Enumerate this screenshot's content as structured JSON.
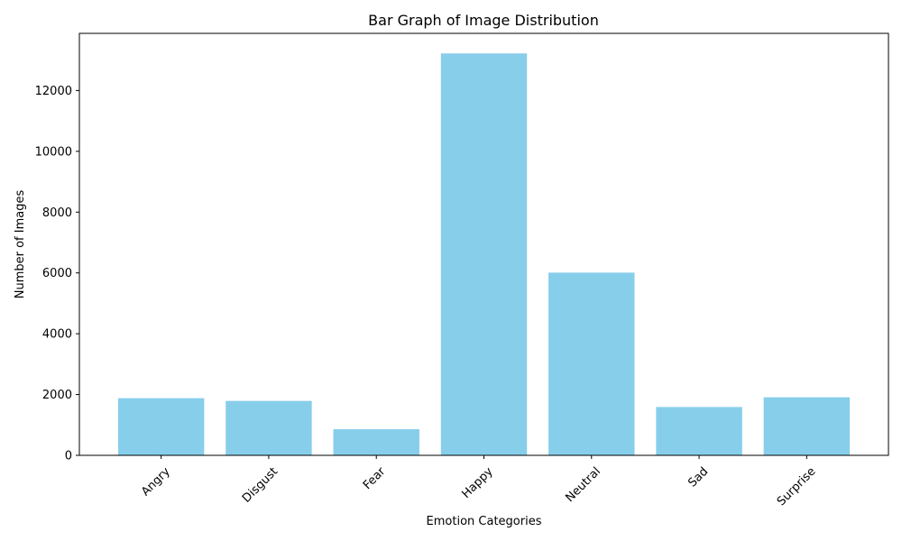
{
  "chart_data": {
    "type": "bar",
    "title": "Bar Graph of Image Distribution",
    "xlabel": "Emotion Categories",
    "ylabel": "Number of Images",
    "categories": [
      "Angry",
      "Disgust",
      "Fear",
      "Happy",
      "Neutral",
      "Sad",
      "Surprise"
    ],
    "values": [
      1880,
      1790,
      860,
      13220,
      6010,
      1590,
      1910
    ],
    "ylim": [
      0,
      13880
    ],
    "yticks": [
      0,
      2000,
      4000,
      6000,
      8000,
      10000,
      12000
    ],
    "ytick_labels": [
      "0",
      "2000",
      "4000",
      "6000",
      "8000",
      "10000",
      "12000"
    ],
    "xtick_rotation": 45,
    "bar_color": "#87ceeb",
    "grid": false,
    "legend": false
  }
}
